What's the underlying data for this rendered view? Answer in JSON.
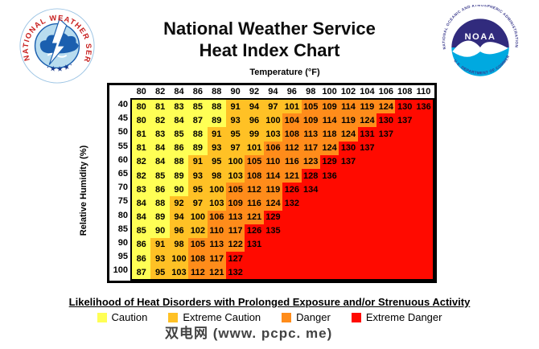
{
  "header": {
    "title_line1": "National Weather Service",
    "title_line2": "Heat Index Chart"
  },
  "logos": {
    "nws": {
      "ring_text": "NATIONAL WEATHER SERVICE",
      "stars": "· ★ ★ ★ ·",
      "ring_color": "#C8201F",
      "cloud_color": "#1B5FAF",
      "disc_color": "#B8DCEF"
    },
    "noaa": {
      "label": "NOAA",
      "ring_top_text": "NATIONAL OCEANIC AND ATMOSPHERIC ADMINISTRATION",
      "ring_bottom_text": "U.S. DEPARTMENT OF COMMERCE",
      "top_color": "#312B7D",
      "bottom_color": "#00A9E0",
      "ring_text_color": "#3A3A8C"
    }
  },
  "chart_data": {
    "type": "heatmap",
    "title": "National Weather Service Heat Index Chart",
    "xlabel": "Temperature (°F)",
    "ylabel": "Relative Humidity (%)",
    "temperatures": [
      80,
      82,
      84,
      86,
      88,
      90,
      92,
      94,
      96,
      98,
      100,
      102,
      104,
      106,
      108,
      110
    ],
    "humidity": [
      40,
      45,
      50,
      55,
      60,
      65,
      70,
      75,
      80,
      85,
      90,
      95,
      100
    ],
    "rows": [
      [
        80,
        81,
        83,
        85,
        88,
        91,
        94,
        97,
        101,
        105,
        109,
        114,
        119,
        124,
        130,
        136
      ],
      [
        80,
        82,
        84,
        87,
        89,
        93,
        96,
        100,
        104,
        109,
        114,
        119,
        124,
        130,
        137
      ],
      [
        81,
        83,
        85,
        88,
        91,
        95,
        99,
        103,
        108,
        113,
        118,
        124,
        131,
        137
      ],
      [
        81,
        84,
        86,
        89,
        93,
        97,
        101,
        106,
        112,
        117,
        124,
        130,
        137
      ],
      [
        82,
        84,
        88,
        91,
        95,
        100,
        105,
        110,
        116,
        123,
        129,
        137
      ],
      [
        82,
        85,
        89,
        93,
        98,
        103,
        108,
        114,
        121,
        128,
        136
      ],
      [
        83,
        86,
        90,
        95,
        100,
        105,
        112,
        119,
        126,
        134
      ],
      [
        84,
        88,
        92,
        97,
        103,
        109,
        116,
        124,
        132
      ],
      [
        84,
        89,
        94,
        100,
        106,
        113,
        121,
        129
      ],
      [
        85,
        90,
        96,
        102,
        110,
        117,
        126,
        135
      ],
      [
        86,
        91,
        98,
        105,
        113,
        122,
        131
      ],
      [
        86,
        93,
        100,
        108,
        117,
        127
      ],
      [
        87,
        95,
        103,
        112,
        121,
        132
      ]
    ],
    "categories": [
      {
        "label": "Caution",
        "color": "#FFFF55",
        "max": 90
      },
      {
        "label": "Extreme Caution",
        "color": "#FFC125",
        "max": 103
      },
      {
        "label": "Danger",
        "color": "#FF8C1A",
        "max": 124
      },
      {
        "label": "Extreme Danger",
        "color": "#FF0A00",
        "max": null
      }
    ],
    "legend_position": "bottom",
    "grid": false
  },
  "legend": {
    "heading": "Likelihood of Heat Disorders with Prolonged Exposure and/or Strenuous Activity"
  },
  "watermark": "双电网 (www. pcpc. me)"
}
